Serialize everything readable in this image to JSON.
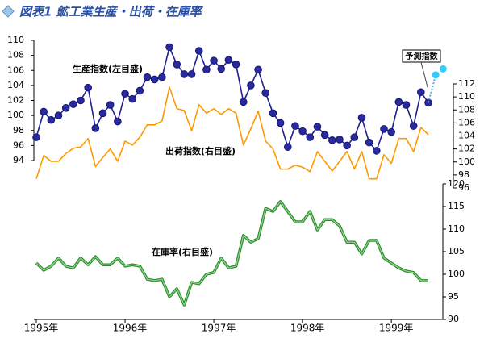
{
  "chart_data": {
    "type": "line",
    "title": "図表1 鉱工業生産・出荷・在庫率",
    "categories": [
      "1995年",
      null,
      null,
      null,
      null,
      null,
      null,
      null,
      null,
      null,
      null,
      null,
      "1996年",
      null,
      null,
      null,
      null,
      null,
      null,
      null,
      null,
      null,
      null,
      null,
      "1997年",
      null,
      null,
      null,
      null,
      null,
      null,
      null,
      null,
      null,
      null,
      null,
      "1998年",
      null,
      null,
      null,
      null,
      null,
      null,
      null,
      null,
      null,
      null,
      null,
      "1999年",
      null,
      null,
      null,
      null,
      null,
      null,
      null
    ],
    "ylim": [
      94,
      110
    ],
    "yticks": [
      94,
      96,
      98,
      100,
      102,
      104,
      106,
      108,
      110
    ],
    "y2lim": [
      96,
      112
    ],
    "y2ticks": [
      96,
      98,
      100,
      102,
      104,
      106,
      108,
      110,
      112
    ],
    "y3lim": [
      90,
      120
    ],
    "y3ticks": [
      90,
      95,
      100,
      105,
      110,
      115,
      120
    ],
    "series": [
      {
        "name": "生産指数(左目盛)",
        "color": "#1f1f8f",
        "axis": "y",
        "markers": true,
        "values": [
          97.1,
          100.5,
          99.4,
          100.0,
          101.0,
          101.5,
          102.0,
          103.7,
          98.3,
          100.3,
          101.4,
          99.2,
          102.9,
          102.2,
          103.3,
          105.1,
          104.8,
          105.1,
          109.1,
          106.8,
          105.5,
          105.5,
          108.6,
          106.1,
          107.3,
          106.2,
          107.4,
          106.8,
          101.8,
          104.0,
          106.1,
          103.0,
          100.3,
          99.0,
          95.8,
          98.6,
          97.9,
          97.1,
          98.5,
          97.4,
          96.7,
          96.8,
          96.0,
          97.1,
          99.7,
          96.4,
          95.3,
          98.2,
          97.8,
          101.8,
          101.4,
          98.6,
          103.1,
          101.7,
          null,
          null
        ]
      },
      {
        "name": "出荷指数(右目盛)",
        "color": "#ff9900",
        "axis": "y2",
        "values": [
          97.4,
          101.0,
          100.1,
          100.1,
          101.3,
          102.1,
          102.3,
          103.6,
          99.3,
          100.7,
          102.0,
          100.1,
          103.2,
          102.6,
          103.8,
          105.7,
          105.7,
          106.3,
          111.5,
          108.2,
          107.9,
          104.8,
          108.8,
          107.5,
          108.2,
          107.3,
          108.2,
          107.5,
          102.6,
          105.1,
          107.8,
          103.2,
          102.0,
          98.9,
          98.9,
          99.5,
          99.2,
          98.5,
          101.6,
          100.1,
          98.6,
          100.1,
          101.6,
          98.9,
          101.6,
          97.4,
          97.4,
          101.1,
          99.8,
          103.6,
          103.6,
          101.6,
          105.3,
          104.2,
          null,
          null
        ]
      },
      {
        "name": "在庫率(右目盛)",
        "color": "#2e8b2e",
        "axis": "y3",
        "values": [
          102.5,
          100.9,
          101.8,
          103.6,
          101.8,
          101.4,
          103.6,
          102.1,
          103.9,
          102.1,
          102.1,
          103.6,
          101.8,
          102.1,
          101.8,
          98.9,
          98.6,
          98.9,
          95.0,
          96.8,
          93.2,
          98.2,
          97.9,
          100.0,
          100.4,
          103.6,
          101.4,
          101.8,
          108.6,
          107.1,
          107.9,
          114.6,
          113.9,
          116.1,
          113.9,
          111.6,
          111.6,
          113.9,
          109.8,
          112.1,
          112.1,
          110.7,
          107.1,
          107.1,
          104.5,
          107.5,
          107.5,
          103.6,
          102.5,
          101.4,
          100.7,
          100.4,
          98.6,
          98.6,
          null,
          null
        ]
      },
      {
        "name": "予測指数",
        "color": "#33ccff",
        "axis": "y",
        "forecast": true,
        "values": [
          null,
          null,
          null,
          null,
          null,
          null,
          null,
          null,
          null,
          null,
          null,
          null,
          null,
          null,
          null,
          null,
          null,
          null,
          null,
          null,
          null,
          null,
          null,
          null,
          null,
          null,
          null,
          null,
          null,
          null,
          null,
          null,
          null,
          null,
          null,
          null,
          null,
          null,
          null,
          null,
          null,
          null,
          null,
          null,
          null,
          null,
          null,
          null,
          null,
          null,
          null,
          null,
          null,
          null,
          105.4,
          106.2
        ]
      }
    ]
  }
}
